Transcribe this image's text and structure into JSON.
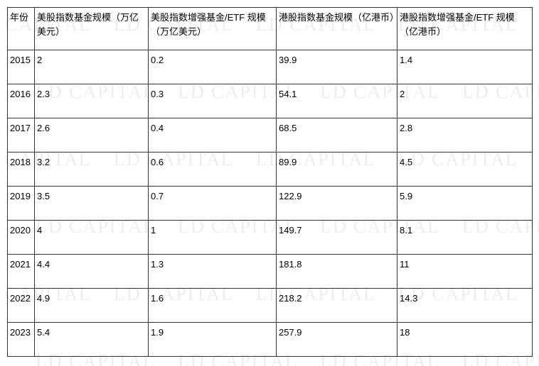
{
  "watermark": {
    "text": "LD CAPITAL",
    "color": "rgba(0,0,0,0.07)",
    "fontsize": 26
  },
  "table": {
    "columns": [
      "年份",
      "美股指数基金规模（万亿美元）",
      "美股指数增强基金/ETF 规模（万亿美元）",
      "港股指数基金规模（亿港币）",
      "港股指数增强基金/ETF 规模（亿港币）"
    ],
    "rows": [
      {
        "year": "2015",
        "us_index": "2",
        "us_etf": "0.2",
        "hk_index": "39.9",
        "hk_etf": "1.4"
      },
      {
        "year": "2016",
        "us_index": "2.3",
        "us_etf": "0.3",
        "hk_index": "54.1",
        "hk_etf": "2"
      },
      {
        "year": "2017",
        "us_index": "2.6",
        "us_etf": "0.4",
        "hk_index": "68.5",
        "hk_etf": "2.8"
      },
      {
        "year": "2018",
        "us_index": "3.2",
        "us_etf": "0.6",
        "hk_index": "89.9",
        "hk_etf": "4.5"
      },
      {
        "year": "2019",
        "us_index": "3.5",
        "us_etf": "0.7",
        "hk_index": "122.9",
        "hk_etf": "5.9"
      },
      {
        "year": "2020",
        "us_index": "4",
        "us_etf": "1",
        "hk_index": "149.7",
        "hk_etf": "8.1"
      },
      {
        "year": "2021",
        "us_index": "4.4",
        "us_etf": "1.3",
        "hk_index": "181.8",
        "hk_etf": "11"
      },
      {
        "year": "2022",
        "us_index": "4.9",
        "us_etf": "1.6",
        "hk_index": "218.2",
        "hk_etf": "14.3"
      },
      {
        "year": "2023",
        "us_index": "5.4",
        "us_etf": "1.9",
        "hk_index": "257.9",
        "hk_etf": "18"
      }
    ]
  }
}
